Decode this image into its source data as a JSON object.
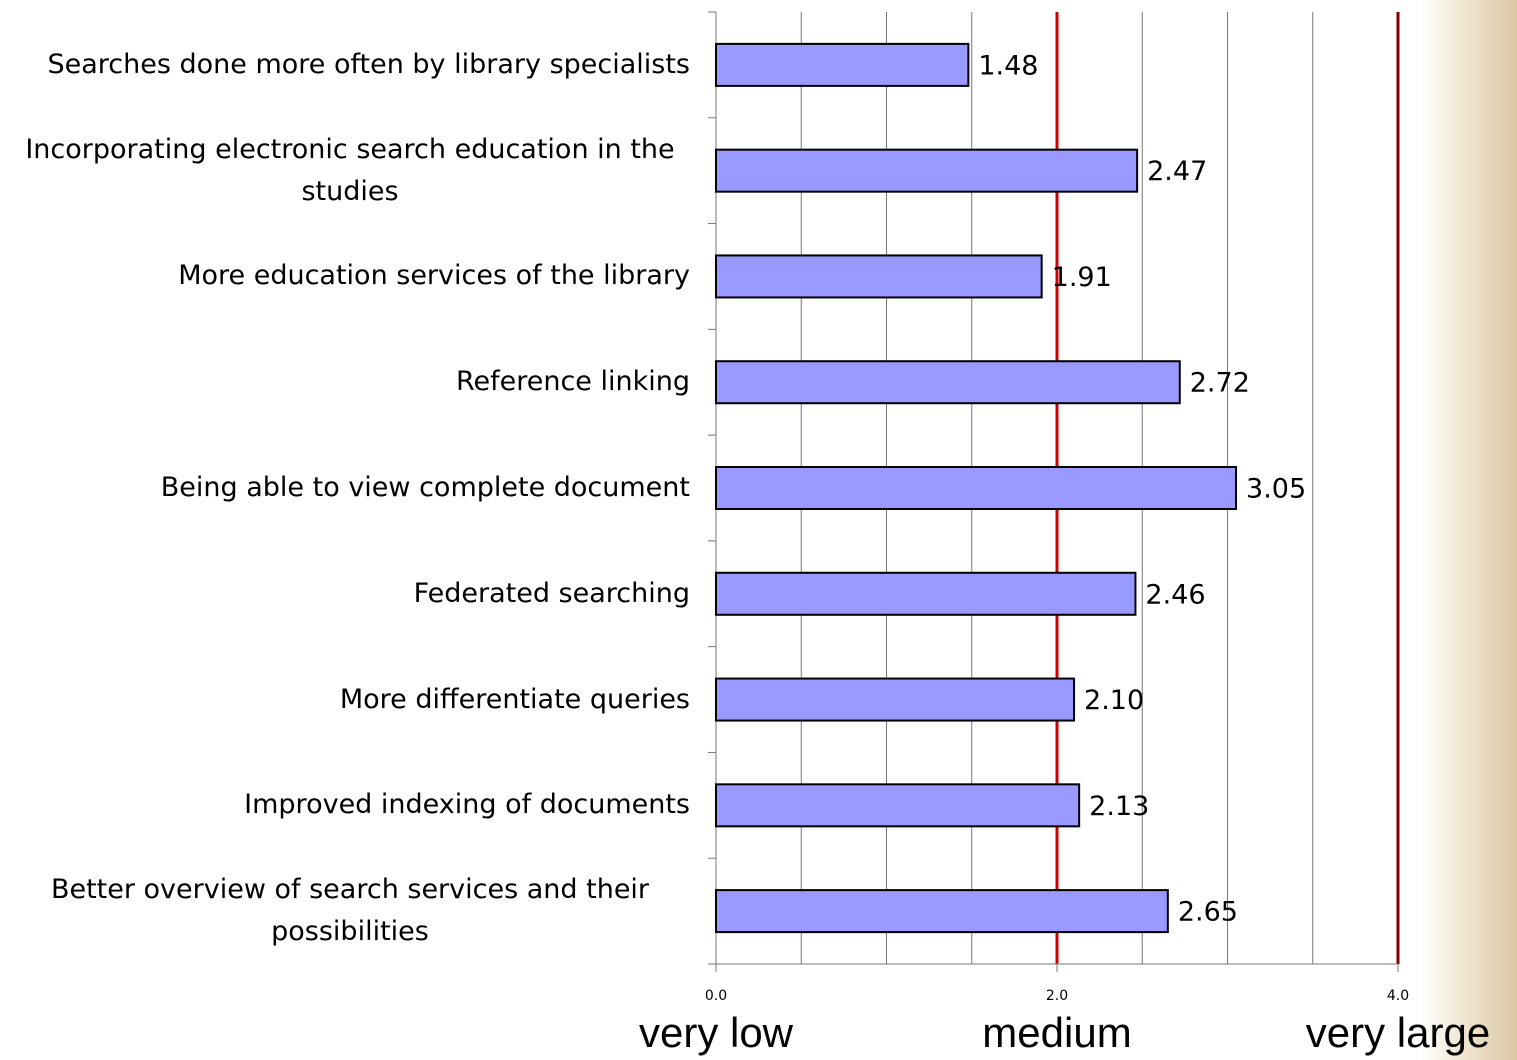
{
  "chart_data": {
    "type": "hbar",
    "categories": [
      "Searches done more often by library specialists",
      "Incorporating electronic search education in the studies",
      "More education services of the library",
      "Reference linking",
      "Being able to view complete document",
      "Federated searching",
      "More differentiate queries",
      "Improved indexing of documents",
      "Better overview of search services and their possibilities"
    ],
    "values": [
      1.48,
      2.47,
      1.91,
      2.72,
      3.05,
      2.46,
      2.1,
      2.13,
      2.65
    ],
    "value_labels": [
      "1.48",
      "2.47",
      "1.91",
      "2.72",
      "3.05",
      "2.46",
      "2.10",
      "2.13",
      "2.65"
    ],
    "color": "#9999ff",
    "xlim": [
      0,
      4
    ],
    "xticks": [
      {
        "value": 0,
        "label": "0.0"
      },
      {
        "value": 2,
        "label": "2.0"
      },
      {
        "value": 4,
        "label": "4.0"
      }
    ],
    "xgrid": [
      0.5,
      1,
      1.5,
      2.5,
      3,
      3.5
    ],
    "grid": true,
    "reference_lines": [
      {
        "value": 2,
        "color": "#cc0000"
      },
      {
        "value": 4,
        "color": "#800000"
      }
    ],
    "scale_labels": [
      {
        "value": 0,
        "label": "very low"
      },
      {
        "value": 2,
        "label": "medium"
      },
      {
        "value": 4,
        "label": "very large"
      }
    ]
  }
}
